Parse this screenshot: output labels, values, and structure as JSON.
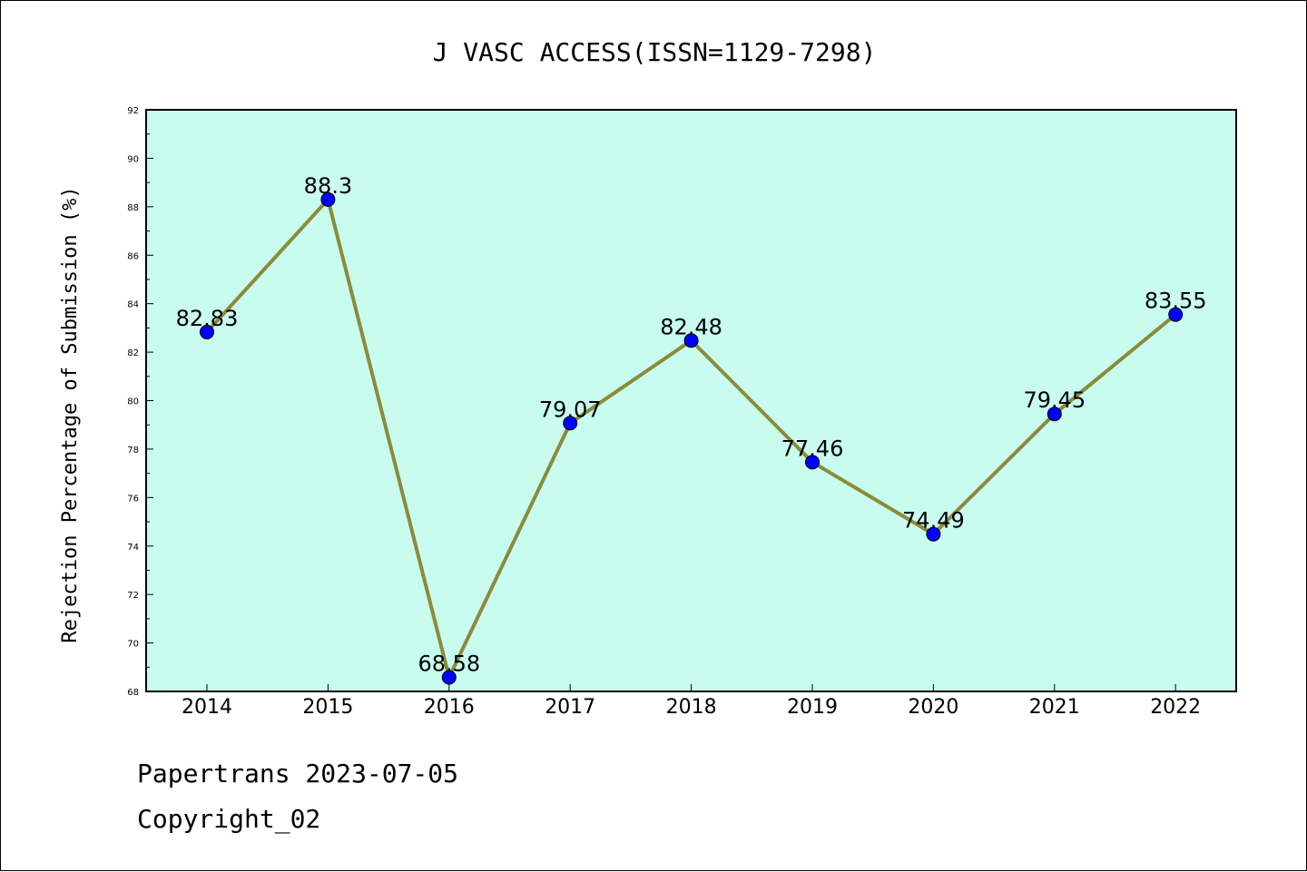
{
  "chart_data": {
    "type": "line",
    "title": "J VASC ACCESS(ISSN=1129-7298)",
    "xlabel": "",
    "ylabel": "Rejection Percentage of Submission (%)",
    "categories": [
      "2014",
      "2015",
      "2016",
      "2017",
      "2018",
      "2019",
      "2020",
      "2021",
      "2022"
    ],
    "series": [
      {
        "values": [
          82.83,
          88.3,
          68.58,
          79.07,
          82.48,
          77.46,
          74.49,
          79.45,
          83.55
        ],
        "labels": [
          "82.83",
          "88.3",
          "68.58",
          "79.07",
          "82.48",
          "77.46",
          "74.49",
          "79.45",
          "83.55"
        ]
      }
    ],
    "ylim": [
      68,
      92
    ],
    "yticks": [
      "68",
      "70",
      "72",
      "74",
      "76",
      "78",
      "80",
      "82",
      "84",
      "86",
      "88",
      "90",
      "92"
    ],
    "grid": false,
    "colors": {
      "plot_background": "#c8fcef",
      "line": "#8b8b3a",
      "marker": "#0000ff"
    }
  },
  "footer": {
    "line1": "Papertrans 2023-07-05",
    "line2": "Copyright_02"
  }
}
